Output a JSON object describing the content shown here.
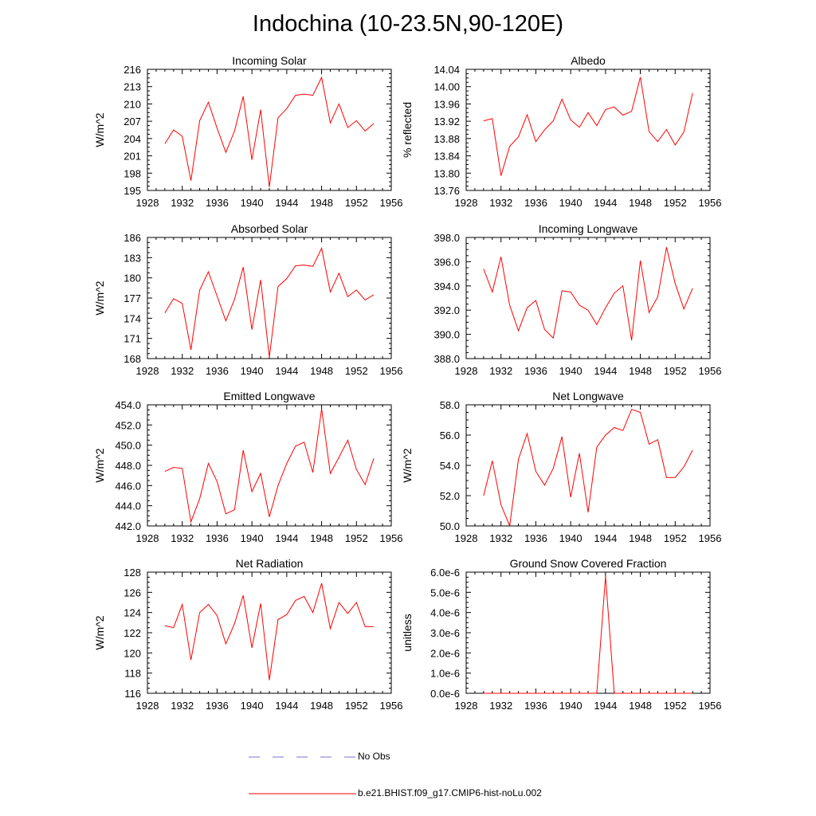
{
  "title": "Indochina (10-23.5N,90-120E)",
  "legend": {
    "obs_label": "No Obs",
    "obs_color": "#7777cc",
    "model_label": "b.e21.BHIST.f09_g17.CMIP6-hist-noLu.002",
    "model_color": "#ff0000"
  },
  "chart_data": [
    {
      "type": "line",
      "title": "Incoming Solar",
      "ylabel": "W/m^2",
      "xlim": [
        1928,
        1956
      ],
      "xticks": [
        1928,
        1932,
        1936,
        1940,
        1944,
        1948,
        1952,
        1956
      ],
      "ylim": [
        195,
        216
      ],
      "yticks": [
        195,
        198,
        201,
        204,
        207,
        210,
        213,
        216
      ],
      "ytick_labels": [
        "195",
        "198",
        "201",
        "204",
        "207",
        "210",
        "213",
        "216"
      ],
      "x": [
        1930,
        1931,
        1932,
        1933,
        1934,
        1935,
        1936,
        1937,
        1938,
        1939,
        1940,
        1941,
        1942,
        1943,
        1944,
        1945,
        1946,
        1947,
        1948,
        1949,
        1950,
        1951,
        1952,
        1953,
        1954
      ],
      "series": [
        {
          "values": [
            203.1,
            205.5,
            204.4,
            196.7,
            207.1,
            210.3,
            205.8,
            201.6,
            205.3,
            211.3,
            200.3,
            209.0,
            195.6,
            207.6,
            209.2,
            211.5,
            211.7,
            211.5,
            214.6,
            206.7,
            210.0,
            205.9,
            207.1,
            205.3,
            206.6
          ],
          "color": "#ff0000"
        }
      ]
    },
    {
      "type": "line",
      "title": "Albedo",
      "ylabel": "% reflected",
      "xlim": [
        1928,
        1956
      ],
      "xticks": [
        1928,
        1932,
        1936,
        1940,
        1944,
        1948,
        1952,
        1956
      ],
      "ylim": [
        13.76,
        14.04
      ],
      "yticks": [
        13.76,
        13.8,
        13.84,
        13.88,
        13.92,
        13.96,
        14.0,
        14.04
      ],
      "ytick_labels": [
        "13.76",
        "13.80",
        "13.84",
        "13.88",
        "13.92",
        "13.96",
        "14.00",
        "14.04"
      ],
      "x": [
        1930,
        1931,
        1932,
        1933,
        1934,
        1935,
        1936,
        1937,
        1938,
        1939,
        1940,
        1941,
        1942,
        1943,
        1944,
        1945,
        1946,
        1947,
        1948,
        1949,
        1950,
        1951,
        1952,
        1953,
        1954
      ],
      "series": [
        {
          "values": [
            13.921,
            13.926,
            13.794,
            13.862,
            13.884,
            13.935,
            13.873,
            13.9,
            13.921,
            13.971,
            13.923,
            13.906,
            13.94,
            13.91,
            13.947,
            13.953,
            13.934,
            13.943,
            14.022,
            13.896,
            13.873,
            13.901,
            13.865,
            13.895,
            13.985
          ],
          "color": "#ff0000"
        }
      ]
    },
    {
      "type": "line",
      "title": "Absorbed Solar",
      "ylabel": "W/m^2",
      "xlim": [
        1928,
        1956
      ],
      "xticks": [
        1928,
        1932,
        1936,
        1940,
        1944,
        1948,
        1952,
        1956
      ],
      "ylim": [
        168,
        186
      ],
      "yticks": [
        168,
        171,
        174,
        177,
        180,
        183,
        186
      ],
      "ytick_labels": [
        "168",
        "171",
        "174",
        "177",
        "180",
        "183",
        "186"
      ],
      "x": [
        1930,
        1931,
        1932,
        1933,
        1934,
        1935,
        1936,
        1937,
        1938,
        1939,
        1940,
        1941,
        1942,
        1943,
        1944,
        1945,
        1946,
        1947,
        1948,
        1949,
        1950,
        1951,
        1952,
        1953,
        1954
      ],
      "series": [
        {
          "values": [
            174.8,
            176.9,
            176.2,
            169.3,
            178.2,
            180.9,
            177.3,
            173.6,
            176.8,
            181.6,
            172.3,
            179.7,
            168.2,
            178.7,
            179.9,
            181.8,
            181.9,
            181.7,
            184.4,
            177.9,
            180.7,
            177.2,
            178.2,
            176.7,
            177.5
          ],
          "color": "#ff0000"
        }
      ]
    },
    {
      "type": "line",
      "title": "Incoming Longwave",
      "ylabel": "",
      "xlim": [
        1928,
        1956
      ],
      "xticks": [
        1928,
        1932,
        1936,
        1940,
        1944,
        1948,
        1952,
        1956
      ],
      "ylim": [
        388,
        398
      ],
      "yticks": [
        388,
        390,
        392,
        394,
        396,
        398
      ],
      "ytick_labels": [
        "388.0",
        "390.0",
        "392.0",
        "394.0",
        "396.0",
        "398.0"
      ],
      "x": [
        1930,
        1931,
        1932,
        1933,
        1934,
        1935,
        1936,
        1937,
        1938,
        1939,
        1940,
        1941,
        1942,
        1943,
        1944,
        1945,
        1946,
        1947,
        1948,
        1949,
        1950,
        1951,
        1952,
        1953,
        1954
      ],
      "series": [
        {
          "values": [
            395.4,
            393.5,
            396.4,
            392.4,
            390.3,
            392.2,
            392.8,
            390.4,
            389.7,
            393.6,
            393.5,
            392.4,
            392.0,
            390.8,
            392.2,
            393.4,
            394.0,
            389.5,
            396.1,
            391.8,
            393.1,
            397.2,
            394.2,
            392.1,
            393.8
          ],
          "color": "#ff0000"
        }
      ]
    },
    {
      "type": "line",
      "title": "Emitted Longwave",
      "ylabel": "W/m^2",
      "xlim": [
        1928,
        1956
      ],
      "xticks": [
        1928,
        1932,
        1936,
        1940,
        1944,
        1948,
        1952,
        1956
      ],
      "ylim": [
        442,
        454
      ],
      "yticks": [
        442,
        444,
        446,
        448,
        450,
        452,
        454
      ],
      "ytick_labels": [
        "442.0",
        "444.0",
        "446.0",
        "448.0",
        "450.0",
        "452.0",
        "454.0"
      ],
      "x": [
        1930,
        1931,
        1932,
        1933,
        1934,
        1935,
        1936,
        1937,
        1938,
        1939,
        1940,
        1941,
        1942,
        1943,
        1944,
        1945,
        1946,
        1947,
        1948,
        1949,
        1950,
        1951,
        1952,
        1953,
        1954
      ],
      "series": [
        {
          "values": [
            447.4,
            447.8,
            447.7,
            442.4,
            444.7,
            448.2,
            446.4,
            443.2,
            443.6,
            449.5,
            445.4,
            447.2,
            442.9,
            446.0,
            448.2,
            449.9,
            450.3,
            447.3,
            453.6,
            447.2,
            448.8,
            450.5,
            447.6,
            446.1,
            448.7
          ],
          "color": "#ff0000"
        }
      ]
    },
    {
      "type": "line",
      "title": "Net Longwave",
      "ylabel": "W/m^2",
      "xlim": [
        1928,
        1956
      ],
      "xticks": [
        1928,
        1932,
        1936,
        1940,
        1944,
        1948,
        1952,
        1956
      ],
      "ylim": [
        50,
        58
      ],
      "yticks": [
        50,
        52,
        54,
        56,
        58
      ],
      "ytick_labels": [
        "50.0",
        "52.0",
        "54.0",
        "56.0",
        "58.0"
      ],
      "x": [
        1930,
        1931,
        1932,
        1933,
        1934,
        1935,
        1936,
        1937,
        1938,
        1939,
        1940,
        1941,
        1942,
        1943,
        1944,
        1945,
        1946,
        1947,
        1948,
        1949,
        1950,
        1951,
        1952,
        1953,
        1954
      ],
      "series": [
        {
          "values": [
            52.0,
            54.3,
            51.4,
            50.0,
            54.4,
            56.1,
            53.6,
            52.7,
            53.8,
            55.9,
            51.9,
            54.8,
            50.9,
            55.2,
            56.0,
            56.5,
            56.3,
            57.7,
            57.5,
            55.4,
            55.7,
            53.2,
            53.2,
            53.9,
            55.0
          ],
          "color": "#ff0000"
        }
      ]
    },
    {
      "type": "line",
      "title": "Net Radiation",
      "ylabel": "W/m^2",
      "xlim": [
        1928,
        1956
      ],
      "xticks": [
        1928,
        1932,
        1936,
        1940,
        1944,
        1948,
        1952,
        1956
      ],
      "ylim": [
        116,
        128
      ],
      "yticks": [
        116,
        118,
        120,
        122,
        124,
        126,
        128
      ],
      "ytick_labels": [
        "116",
        "118",
        "120",
        "122",
        "124",
        "126",
        "128"
      ],
      "x": [
        1930,
        1931,
        1932,
        1933,
        1934,
        1935,
        1936,
        1937,
        1938,
        1939,
        1940,
        1941,
        1942,
        1943,
        1944,
        1945,
        1946,
        1947,
        1948,
        1949,
        1950,
        1951,
        1952,
        1953,
        1954
      ],
      "series": [
        {
          "values": [
            122.7,
            122.5,
            124.8,
            119.3,
            124.0,
            124.8,
            123.7,
            120.9,
            122.9,
            125.7,
            120.5,
            124.9,
            117.3,
            123.3,
            123.8,
            125.2,
            125.6,
            124.0,
            126.9,
            122.4,
            125.0,
            123.9,
            125.0,
            122.6,
            122.6
          ],
          "color": "#ff0000"
        }
      ]
    },
    {
      "type": "line",
      "title": "Ground Snow Covered Fraction",
      "ylabel": "unitless",
      "xlim": [
        1928,
        1956
      ],
      "xticks": [
        1928,
        1932,
        1936,
        1940,
        1944,
        1948,
        1952,
        1956
      ],
      "ylim": [
        0,
        6e-06
      ],
      "yticks": [
        0,
        1e-06,
        2e-06,
        3e-06,
        4e-06,
        5e-06,
        6e-06
      ],
      "ytick_labels": [
        "0.0e-6",
        "1.0e-6",
        "2.0e-6",
        "3.0e-6",
        "4.0e-6",
        "5.0e-6",
        "6.0e-6"
      ],
      "x": [
        1930,
        1931,
        1932,
        1933,
        1934,
        1935,
        1936,
        1937,
        1938,
        1939,
        1940,
        1941,
        1942,
        1943,
        1944,
        1945,
        1946,
        1947,
        1948,
        1949,
        1950,
        1951,
        1952,
        1953,
        1954
      ],
      "series": [
        {
          "values": [
            0,
            0,
            0,
            0,
            0,
            0,
            0,
            0,
            0,
            0,
            0,
            0,
            0,
            0,
            5.8e-06,
            0,
            0,
            0,
            0,
            0,
            0,
            0,
            0,
            0,
            0
          ],
          "color": "#ff0000"
        }
      ]
    }
  ]
}
